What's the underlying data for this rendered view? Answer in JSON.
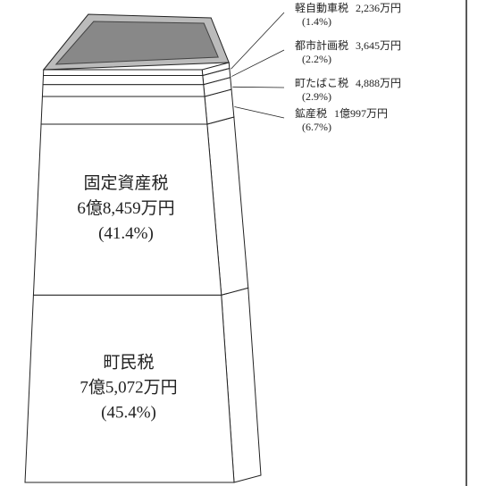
{
  "chart_data": {
    "type": "stacked-bar",
    "color": "#ffffff",
    "series": [
      {
        "name": "町民税",
        "amount": "7億5,072万円",
        "values": [
          45.4
        ],
        "value_labels": [
          "(45.4%)"
        ]
      },
      {
        "name": "固定資産税",
        "amount": "6億8,459万円",
        "values": [
          41.4
        ],
        "value_labels": [
          "(41.4%)"
        ]
      },
      {
        "name": "鉱産税",
        "amount": "1億997万円",
        "values": [
          6.7
        ],
        "value_labels": [
          "(6.7%)"
        ]
      },
      {
        "name": "町たばこ税",
        "amount": "4,888万円",
        "values": [
          2.9
        ],
        "value_labels": [
          "(2.9%)"
        ]
      },
      {
        "name": "都市計画税",
        "amount": "3,645万円",
        "values": [
          2.2
        ],
        "value_labels": [
          "(2.2%)"
        ]
      },
      {
        "name": "軽自動車税",
        "amount": "2,236万円",
        "values": [
          1.4
        ],
        "value_labels": [
          "(1.4%)"
        ]
      }
    ]
  }
}
